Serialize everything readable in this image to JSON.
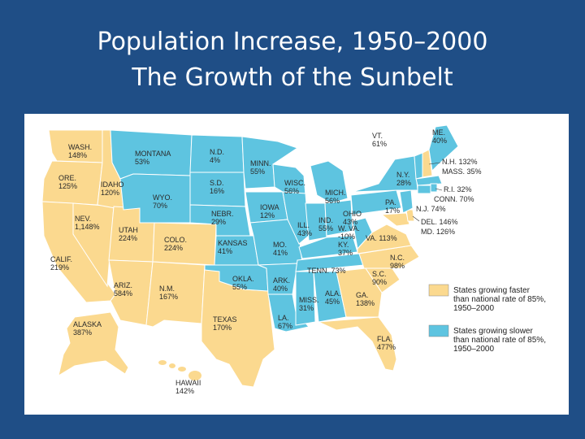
{
  "title": {
    "line1": "Population Increase, 1950–2000",
    "line2": "The Growth of the Sunbelt"
  },
  "colors": {
    "background": "#1f4e86",
    "faster": "#fbd98f",
    "slower": "#5ec4e0",
    "line": "#ffffff"
  },
  "legend": {
    "faster": [
      "States growing faster",
      "than national rate of 85%,",
      "1950–2000"
    ],
    "slower": [
      "States growing slower",
      "than national rate of 85%,",
      "1950–2000"
    ]
  },
  "states": [
    {
      "abbr": "WASH.",
      "pct": "148%",
      "group": "faster"
    },
    {
      "abbr": "ORE.",
      "pct": "125%",
      "group": "faster"
    },
    {
      "abbr": "CALIF.",
      "pct": "219%",
      "group": "faster"
    },
    {
      "abbr": "NEV.",
      "pct": "1,148%",
      "group": "faster"
    },
    {
      "abbr": "IDAHO",
      "pct": "120%",
      "group": "faster"
    },
    {
      "abbr": "MONTANA",
      "pct": "53%",
      "group": "slower"
    },
    {
      "abbr": "WYO.",
      "pct": "70%",
      "group": "slower"
    },
    {
      "abbr": "UTAH",
      "pct": "224%",
      "group": "faster"
    },
    {
      "abbr": "COLO.",
      "pct": "224%",
      "group": "faster"
    },
    {
      "abbr": "ARIZ.",
      "pct": "584%",
      "group": "faster"
    },
    {
      "abbr": "N.M.",
      "pct": "167%",
      "group": "faster"
    },
    {
      "abbr": "N.D.",
      "pct": "4%",
      "group": "slower"
    },
    {
      "abbr": "S.D.",
      "pct": "16%",
      "group": "slower"
    },
    {
      "abbr": "NEBR.",
      "pct": "29%",
      "group": "slower"
    },
    {
      "abbr": "KANSAS",
      "pct": "41%",
      "group": "slower"
    },
    {
      "abbr": "OKLA.",
      "pct": "55%",
      "group": "slower"
    },
    {
      "abbr": "TEXAS",
      "pct": "170%",
      "group": "faster"
    },
    {
      "abbr": "MINN.",
      "pct": "55%",
      "group": "slower"
    },
    {
      "abbr": "IOWA",
      "pct": "12%",
      "group": "slower"
    },
    {
      "abbr": "MO.",
      "pct": "41%",
      "group": "slower"
    },
    {
      "abbr": "ARK.",
      "pct": "40%",
      "group": "slower"
    },
    {
      "abbr": "LA.",
      "pct": "67%",
      "group": "slower"
    },
    {
      "abbr": "WISC.",
      "pct": "56%",
      "group": "slower"
    },
    {
      "abbr": "ILL.",
      "pct": "43%",
      "group": "slower"
    },
    {
      "abbr": "MICH.",
      "pct": "56%",
      "group": "slower"
    },
    {
      "abbr": "IND.",
      "pct": "55%",
      "group": "slower"
    },
    {
      "abbr": "OHIO",
      "pct": "43%",
      "group": "slower"
    },
    {
      "abbr": "KY.",
      "pct": "37%",
      "group": "slower"
    },
    {
      "abbr": "TENN.",
      "pct": "73%",
      "group": "slower"
    },
    {
      "abbr": "MISS.",
      "pct": "31%",
      "group": "slower"
    },
    {
      "abbr": "ALA.",
      "pct": "45%",
      "group": "slower"
    },
    {
      "abbr": "GA.",
      "pct": "138%",
      "group": "faster"
    },
    {
      "abbr": "FLA.",
      "pct": "477%",
      "group": "faster"
    },
    {
      "abbr": "S.C.",
      "pct": "90%",
      "group": "faster"
    },
    {
      "abbr": "N.C.",
      "pct": "98%",
      "group": "faster"
    },
    {
      "abbr": "VA.",
      "pct": "113%",
      "group": "faster"
    },
    {
      "abbr": "W. VA.",
      "pct": "-10%",
      "group": "slower"
    },
    {
      "abbr": "PA.",
      "pct": "17%",
      "group": "slower"
    },
    {
      "abbr": "N.Y.",
      "pct": "28%",
      "group": "slower"
    },
    {
      "abbr": "VT.",
      "pct": "61%",
      "group": "slower"
    },
    {
      "abbr": "ME.",
      "pct": "40%",
      "group": "slower"
    },
    {
      "abbr": "N.H.",
      "pct": "132%",
      "group": "faster"
    },
    {
      "abbr": "MASS.",
      "pct": "35%",
      "group": "slower"
    },
    {
      "abbr": "R.I.",
      "pct": "32%",
      "group": "slower"
    },
    {
      "abbr": "CONN.",
      "pct": "70%",
      "group": "slower"
    },
    {
      "abbr": "N.J.",
      "pct": "74%",
      "group": "slower"
    },
    {
      "abbr": "DEL.",
      "pct": "146%",
      "group": "faster"
    },
    {
      "abbr": "MD.",
      "pct": "126%",
      "group": "faster"
    },
    {
      "abbr": "ALASKA",
      "pct": "387%",
      "group": "faster"
    },
    {
      "abbr": "HAWAII",
      "pct": "142%",
      "group": "faster"
    }
  ]
}
